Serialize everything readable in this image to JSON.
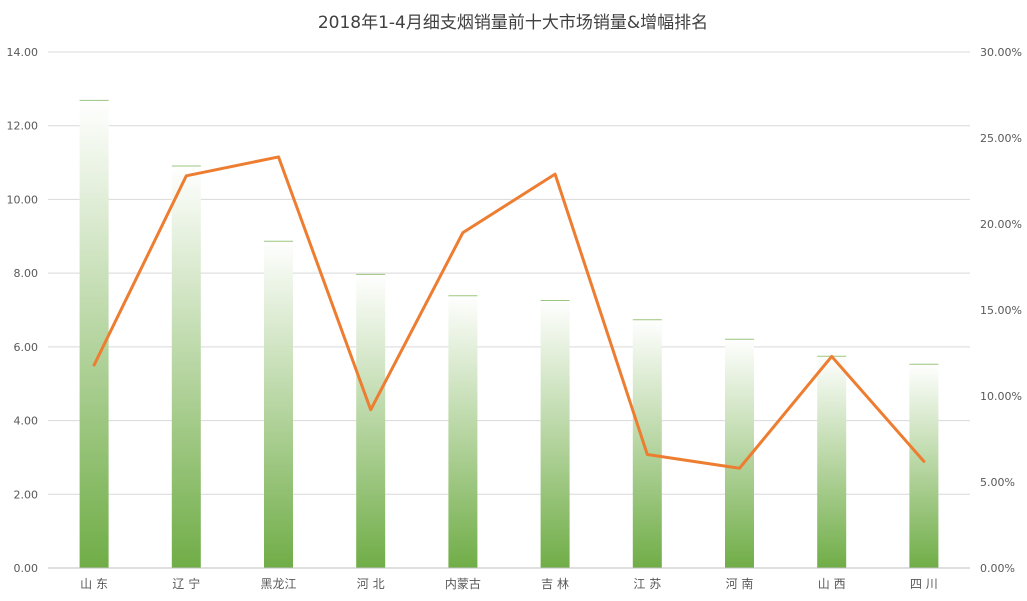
{
  "chart_data": {
    "type": "bar",
    "title": "2018年1-4月细支烟销量前十大市场销量&增幅排名",
    "categories": [
      "山 东",
      "辽 宁",
      "黑龙江",
      "河 北",
      "内蒙古",
      "吉 林",
      "江 苏",
      "河 南",
      "山 西",
      "四 川"
    ],
    "series": [
      {
        "type": "bar",
        "axis": "left",
        "values": [
          12.7,
          10.92,
          8.88,
          7.98,
          7.4,
          7.27,
          6.75,
          6.22,
          5.76,
          5.54
        ]
      },
      {
        "type": "line",
        "axis": "right",
        "values": [
          0.118,
          0.228,
          0.239,
          0.092,
          0.195,
          0.229,
          0.066,
          0.058,
          0.123,
          0.062
        ]
      }
    ],
    "y_left": {
      "lim": [
        0,
        14
      ],
      "ticks": [
        "0.00",
        "2.00",
        "4.00",
        "6.00",
        "8.00",
        "10.00",
        "12.00",
        "14.00"
      ]
    },
    "y_right": {
      "lim": [
        0,
        0.3
      ],
      "ticks": [
        "0.00%",
        "5.00%",
        "10.00%",
        "15.00%",
        "20.00%",
        "25.00%",
        "30.00%"
      ]
    },
    "grid": true,
    "colors": {
      "bar_dark": "#70ad47",
      "bar_light": "#ffffff",
      "line": "#ed7d31",
      "grid": "#d9d9d9"
    }
  }
}
